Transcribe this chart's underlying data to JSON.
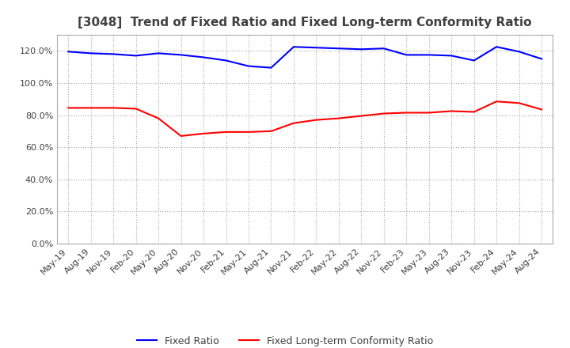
{
  "title": "[3048]  Trend of Fixed Ratio and Fixed Long-term Conformity Ratio",
  "x_labels": [
    "May-19",
    "Aug-19",
    "Nov-19",
    "Feb-20",
    "May-20",
    "Aug-20",
    "Nov-20",
    "Feb-21",
    "May-21",
    "Aug-21",
    "Nov-21",
    "Feb-22",
    "May-22",
    "Aug-22",
    "Nov-22",
    "Feb-23",
    "May-23",
    "Aug-23",
    "Nov-23",
    "Feb-24",
    "May-24",
    "Aug-24"
  ],
  "fixed_ratio": [
    119.5,
    118.5,
    118.0,
    117.0,
    118.5,
    117.5,
    116.0,
    114.0,
    110.5,
    109.5,
    122.5,
    122.0,
    121.5,
    121.0,
    121.5,
    117.5,
    117.5,
    117.0,
    114.0,
    122.5,
    119.5,
    115.0
  ],
  "fixed_lt_ratio": [
    84.5,
    84.5,
    84.5,
    84.0,
    78.0,
    67.0,
    68.5,
    69.5,
    69.5,
    70.0,
    75.0,
    77.0,
    78.0,
    79.5,
    81.0,
    81.5,
    81.5,
    82.5,
    82.0,
    88.5,
    87.5,
    83.5
  ],
  "fixed_ratio_color": "#0000FF",
  "fixed_lt_ratio_color": "#FF0000",
  "ylim": [
    0,
    130
  ],
  "yticks": [
    0,
    20,
    40,
    60,
    80,
    100,
    120
  ],
  "background_color": "#FFFFFF",
  "grid_color": "#AAAAAA",
  "spine_color": "#AAAAAA",
  "text_color": "#404040",
  "title_fontsize": 11,
  "tick_fontsize": 8,
  "legend_labels": [
    "Fixed Ratio",
    "Fixed Long-term Conformity Ratio"
  ]
}
